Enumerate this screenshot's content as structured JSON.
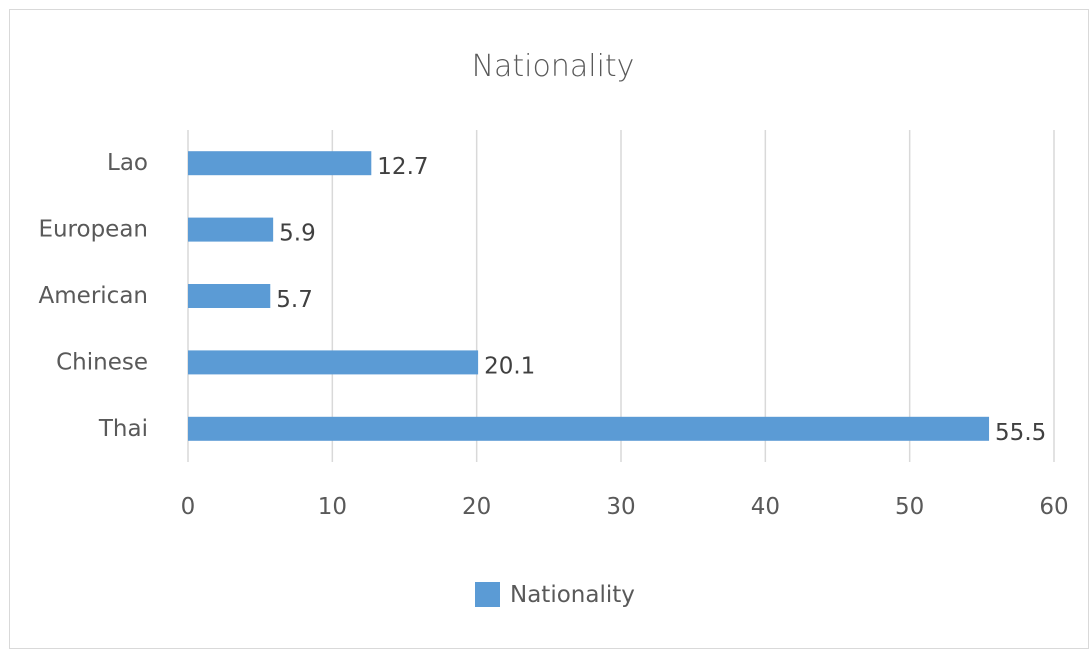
{
  "chart_data": {
    "type": "bar",
    "orientation": "horizontal",
    "title": "Nationality",
    "categories": [
      "Thai",
      "Chinese",
      "American",
      "European",
      "Lao"
    ],
    "series": [
      {
        "name": "Nationality",
        "values": [
          55.5,
          20.1,
          5.7,
          5.9,
          12.7
        ],
        "color": "#5b9bd5"
      }
    ],
    "xlim": [
      0,
      60
    ],
    "xticks": [
      0,
      10,
      20,
      30,
      40,
      50,
      60
    ],
    "grid": true,
    "legend_position": "bottom",
    "data_labels": true
  }
}
